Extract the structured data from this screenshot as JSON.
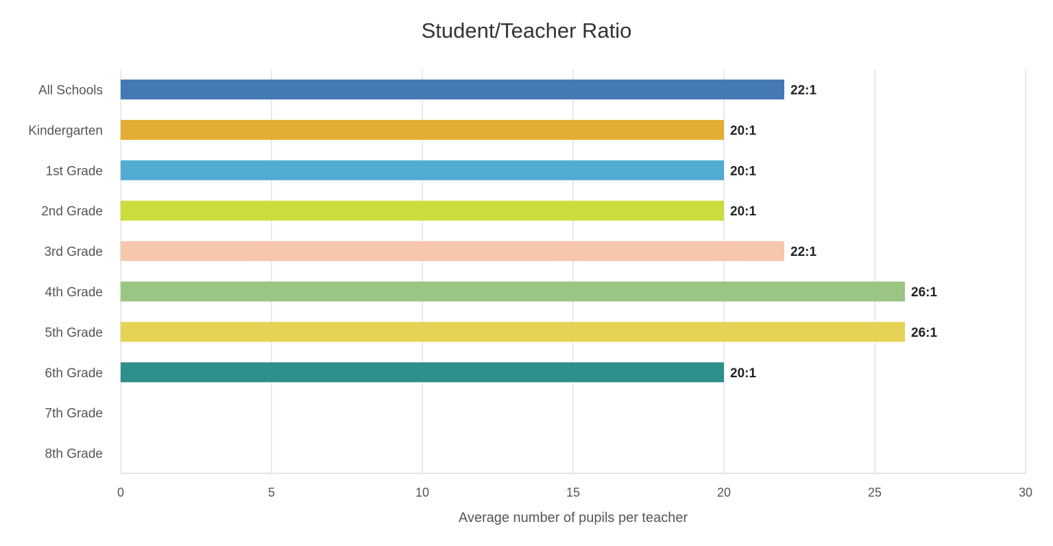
{
  "chart_data": {
    "type": "bar",
    "orientation": "horizontal",
    "title": "Student/Teacher Ratio",
    "xlabel": "Average number of pupils per teacher",
    "ylabel": "",
    "xlim": [
      0,
      30
    ],
    "xticks": [
      "0",
      "5",
      "10",
      "15",
      "20",
      "25",
      "30"
    ],
    "grid": true,
    "categories": [
      "All Schools",
      "Kindergarten",
      "1st Grade",
      "2nd Grade",
      "3rd Grade",
      "4th Grade",
      "5th Grade",
      "6th Grade",
      "7th Grade",
      "8th Grade"
    ],
    "values": [
      22,
      20,
      20,
      20,
      22,
      26,
      26,
      20,
      null,
      null
    ],
    "data_labels": [
      "22:1",
      "20:1",
      "20:1",
      "20:1",
      "22:1",
      "26:1",
      "26:1",
      "20:1",
      "",
      ""
    ],
    "colors": [
      "#4579b3",
      "#e3ae33",
      "#52acd2",
      "#cadd3d",
      "#f6c6ad",
      "#9ac582",
      "#e4d354",
      "#2e8f8c",
      "#cccccc",
      "#cccccc"
    ]
  }
}
